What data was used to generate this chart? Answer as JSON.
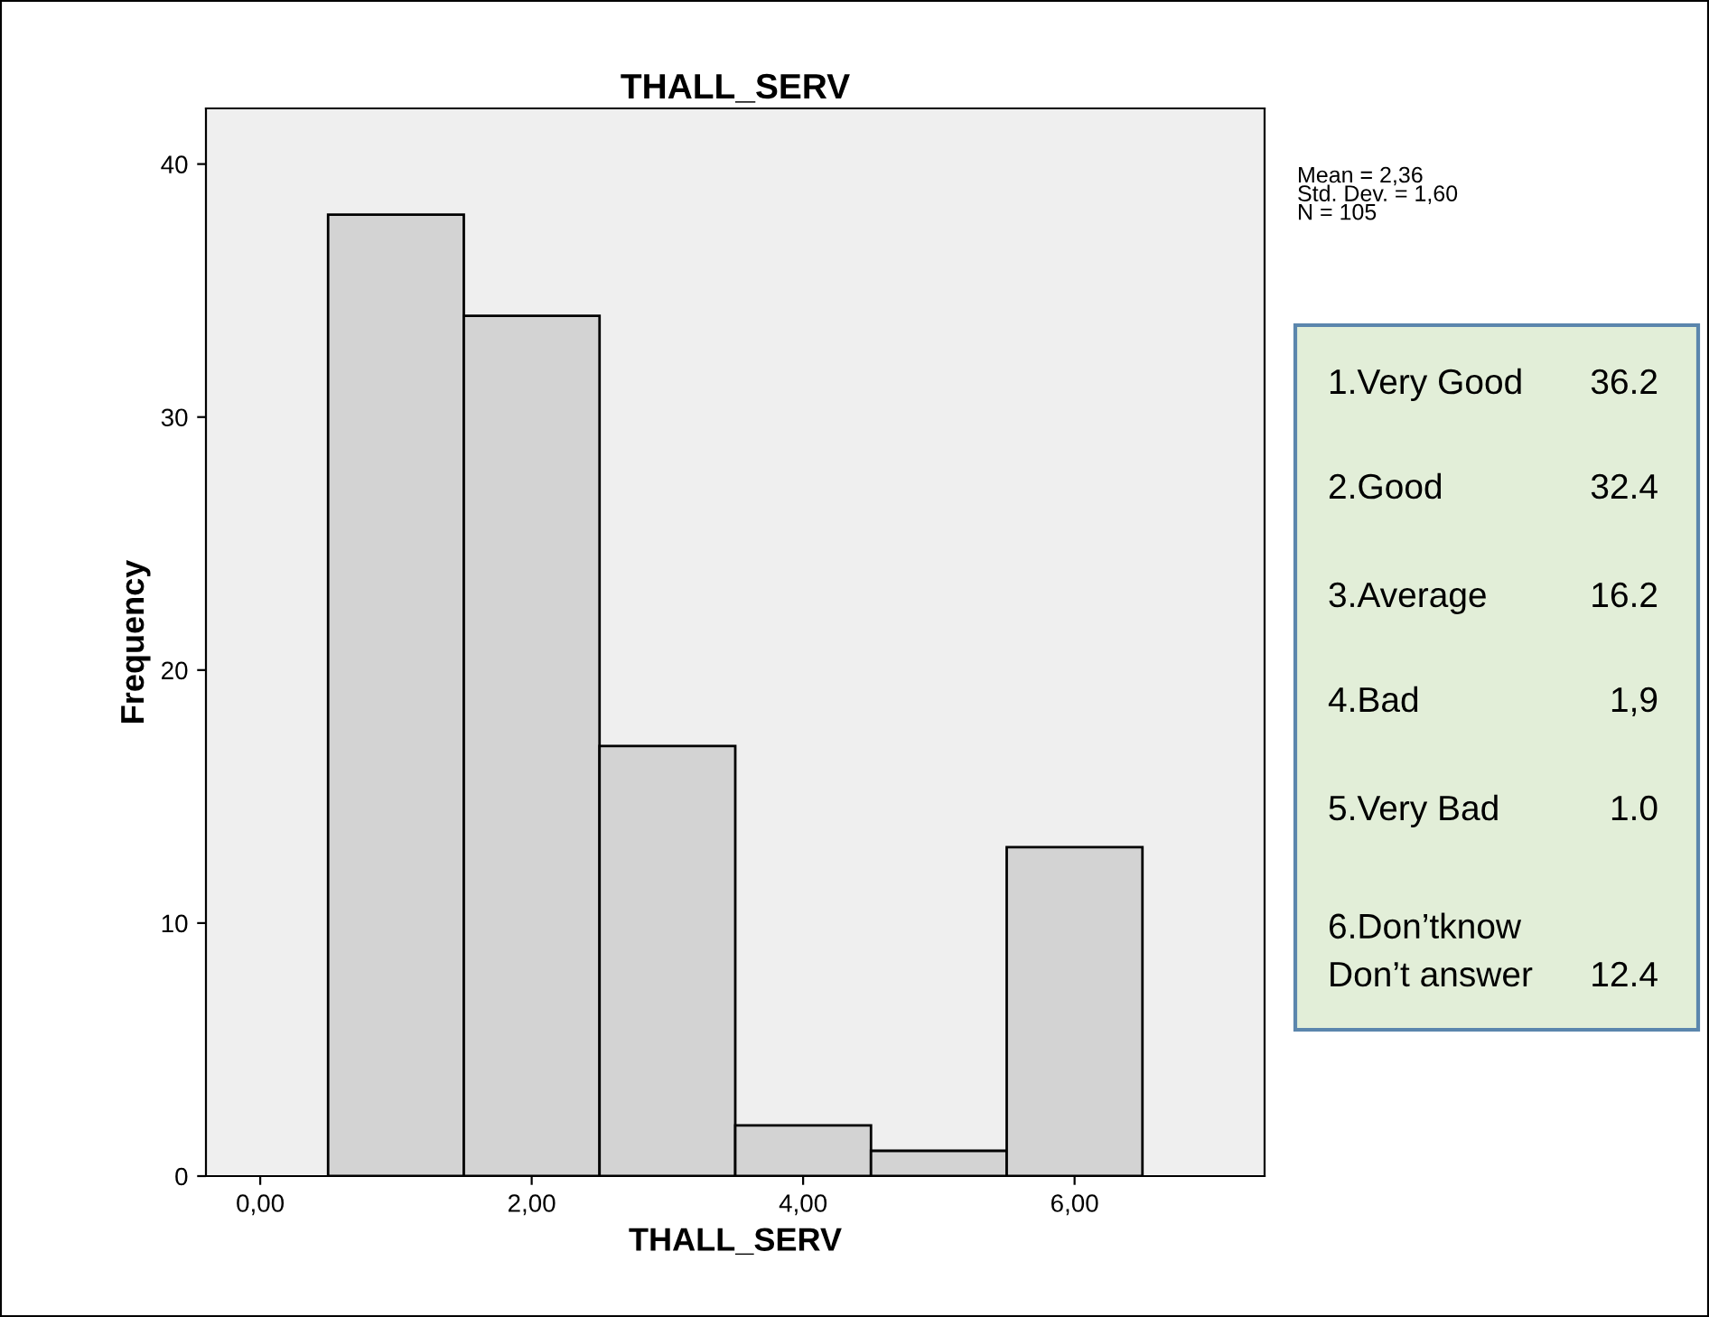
{
  "chart_data": {
    "type": "histogram",
    "title": "THALL_SERV",
    "xlabel": "THALL_SERV",
    "ylabel": "Frequency",
    "bins": [
      0.5,
      1.5,
      2.5,
      3.5,
      4.5,
      5.5,
      6.5
    ],
    "values": [
      38,
      34,
      17,
      2,
      1,
      13
    ],
    "color": "#d3d3d3",
    "xlim": [
      -0.4,
      7.4
    ],
    "xticks": [
      {
        "value": 0,
        "label": "0,00"
      },
      {
        "value": 2,
        "label": "2,00"
      },
      {
        "value": 4,
        "label": "4,00"
      },
      {
        "value": 6,
        "label": "6,00"
      }
    ],
    "ylim": [
      0,
      42.2
    ],
    "yticks": [
      0,
      10,
      20,
      30,
      40
    ],
    "grid": false,
    "annotations": [
      "Mean = 2,36\nStd. Dev. = 1,60\nN = 105",
      "1.Very Good",
      "36.2",
      "2.Good",
      "32.4",
      "3.Average",
      "16.2",
      "4.Bad",
      "1,9",
      "5.Very Bad",
      "1.0",
      "6.Don’tknow\nDon’t answer",
      "12.4"
    ]
  }
}
